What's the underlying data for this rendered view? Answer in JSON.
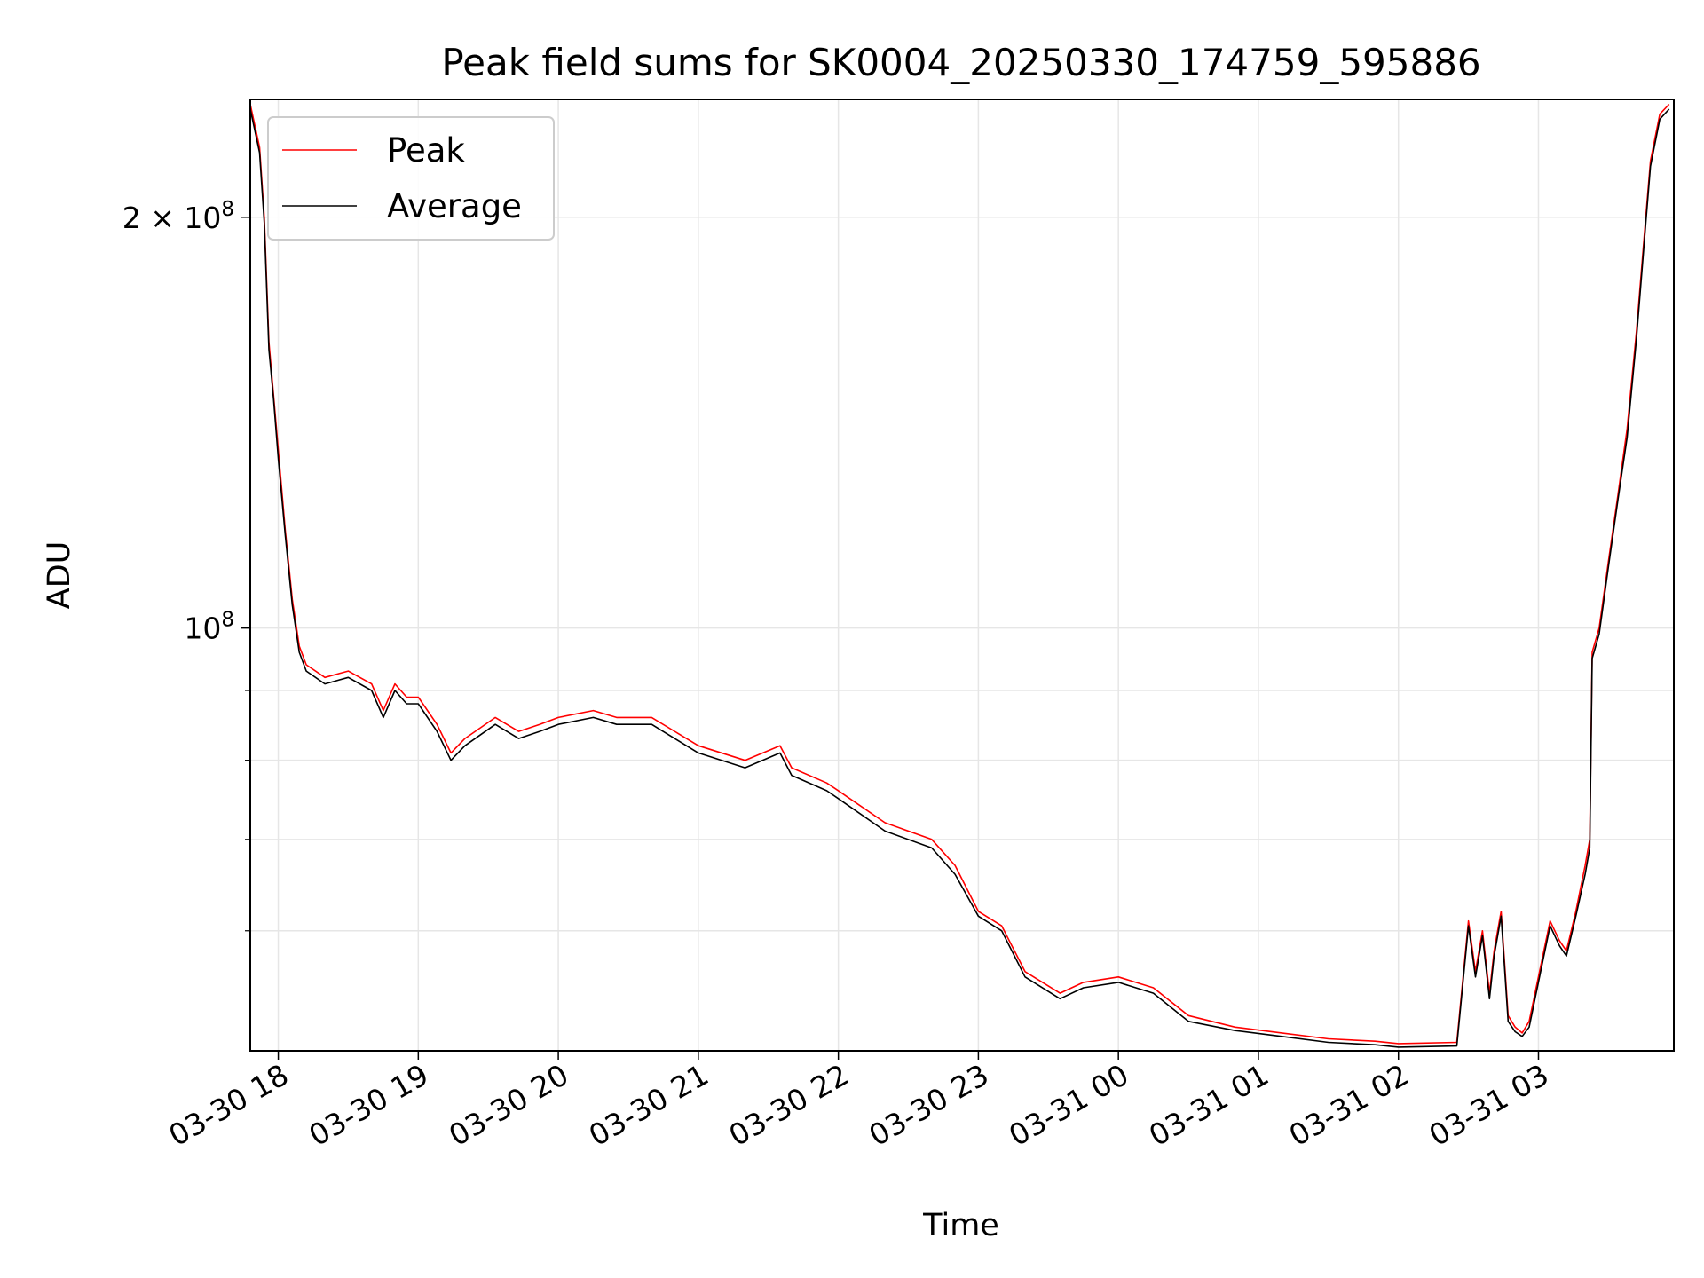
{
  "chart_data": {
    "type": "line",
    "title": "Peak field sums for SK0004_20250330_174759_595886",
    "xlabel": "Time",
    "ylabel": "ADU",
    "y_scale": "log",
    "grid": true,
    "legend_position": "upper-left",
    "xlim": [
      "2025-03-30 17:48",
      "2025-03-31 03:58"
    ],
    "ylim": [
      49000000,
      244000000
    ],
    "x_ticks": [
      {
        "value": "2025-03-30 18:00",
        "label": "03-30 18"
      },
      {
        "value": "2025-03-30 19:00",
        "label": "03-30 19"
      },
      {
        "value": "2025-03-30 20:00",
        "label": "03-30 20"
      },
      {
        "value": "2025-03-30 21:00",
        "label": "03-30 21"
      },
      {
        "value": "2025-03-30 22:00",
        "label": "03-30 22"
      },
      {
        "value": "2025-03-30 23:00",
        "label": "03-30 23"
      },
      {
        "value": "2025-03-31 00:00",
        "label": "03-31 00"
      },
      {
        "value": "2025-03-31 01:00",
        "label": "03-31 01"
      },
      {
        "value": "2025-03-31 02:00",
        "label": "03-31 02"
      },
      {
        "value": "2025-03-31 03:00",
        "label": "03-31 03"
      }
    ],
    "y_ticks": [
      {
        "value": 100000000,
        "base": "10",
        "exp": "8",
        "mantissa": ""
      },
      {
        "value": 200000000,
        "base": "10",
        "exp": "8",
        "mantissa": "2 × "
      }
    ],
    "y_minor_ticks": [
      60000000,
      70000000,
      80000000,
      90000000
    ],
    "series": [
      {
        "name": "Peak",
        "color": "#ff0000",
        "x": [
          "2025-03-30 17:48",
          "2025-03-30 17:52",
          "2025-03-30 17:54",
          "2025-03-30 17:56",
          "2025-03-30 17:58",
          "2025-03-30 18:00",
          "2025-03-30 18:03",
          "2025-03-30 18:06",
          "2025-03-30 18:09",
          "2025-03-30 18:12",
          "2025-03-30 18:20",
          "2025-03-30 18:30",
          "2025-03-30 18:40",
          "2025-03-30 18:45",
          "2025-03-30 18:50",
          "2025-03-30 18:55",
          "2025-03-30 19:00",
          "2025-03-30 19:08",
          "2025-03-30 19:14",
          "2025-03-30 19:20",
          "2025-03-30 19:33",
          "2025-03-30 19:43",
          "2025-03-30 19:52",
          "2025-03-30 20:00",
          "2025-03-30 20:15",
          "2025-03-30 20:25",
          "2025-03-30 20:40",
          "2025-03-30 21:00",
          "2025-03-30 21:20",
          "2025-03-30 21:35",
          "2025-03-30 21:40",
          "2025-03-30 21:55",
          "2025-03-30 22:00",
          "2025-03-30 22:20",
          "2025-03-30 22:40",
          "2025-03-30 22:50",
          "2025-03-30 23:00",
          "2025-03-30 23:10",
          "2025-03-30 23:20",
          "2025-03-30 23:35",
          "2025-03-30 23:45",
          "2025-03-31 00:00",
          "2025-03-31 00:15",
          "2025-03-31 00:30",
          "2025-03-31 00:50",
          "2025-03-31 01:10",
          "2025-03-31 01:30",
          "2025-03-31 01:50",
          "2025-03-31 02:00",
          "2025-03-31 02:25",
          "2025-03-31 02:30",
          "2025-03-31 02:33",
          "2025-03-31 02:36",
          "2025-03-31 02:39",
          "2025-03-31 02:41",
          "2025-03-31 02:44",
          "2025-03-31 02:47",
          "2025-03-31 02:50",
          "2025-03-31 02:53",
          "2025-03-31 02:56",
          "2025-03-31 03:05",
          "2025-03-31 03:09",
          "2025-03-31 03:12",
          "2025-03-31 03:16",
          "2025-03-31 03:20",
          "2025-03-31 03:22",
          "2025-03-31 03:23",
          "2025-03-31 03:26",
          "2025-03-31 03:30",
          "2025-03-31 03:34",
          "2025-03-31 03:38",
          "2025-03-31 03:42",
          "2025-03-31 03:46",
          "2025-03-31 03:48",
          "2025-03-31 03:52",
          "2025-03-31 03:56"
        ],
        "y": [
          242000000,
          225000000,
          200000000,
          162000000,
          148000000,
          135000000,
          118000000,
          105000000,
          97000000,
          94000000,
          92000000,
          93000000,
          91000000,
          87000000,
          91000000,
          89000000,
          89000000,
          85000000,
          81000000,
          83000000,
          86000000,
          84000000,
          85000000,
          86000000,
          87000000,
          86000000,
          86000000,
          82000000,
          80000000,
          82000000,
          79000000,
          77000000,
          76000000,
          72000000,
          70000000,
          67000000,
          62000000,
          60500000,
          56000000,
          54000000,
          55000000,
          55500000,
          54500000,
          52000000,
          51000000,
          50500000,
          50000000,
          49800000,
          49600000,
          49700000,
          61000000,
          56000000,
          60000000,
          54000000,
          58000000,
          62000000,
          52000000,
          51000000,
          50500000,
          51500000,
          61000000,
          59000000,
          58000000,
          62000000,
          67000000,
          70000000,
          96000000,
          100000000,
          112000000,
          125000000,
          140000000,
          165000000,
          200000000,
          220000000,
          238000000,
          242000000
        ]
      },
      {
        "name": "Average",
        "color": "#000000",
        "x": [
          "2025-03-30 17:48",
          "2025-03-30 17:52",
          "2025-03-30 17:54",
          "2025-03-30 17:56",
          "2025-03-30 17:58",
          "2025-03-30 18:00",
          "2025-03-30 18:03",
          "2025-03-30 18:06",
          "2025-03-30 18:09",
          "2025-03-30 18:12",
          "2025-03-30 18:20",
          "2025-03-30 18:30",
          "2025-03-30 18:40",
          "2025-03-30 18:45",
          "2025-03-30 18:50",
          "2025-03-30 18:55",
          "2025-03-30 19:00",
          "2025-03-30 19:08",
          "2025-03-30 19:14",
          "2025-03-30 19:20",
          "2025-03-30 19:33",
          "2025-03-30 19:43",
          "2025-03-30 19:52",
          "2025-03-30 20:00",
          "2025-03-30 20:15",
          "2025-03-30 20:25",
          "2025-03-30 20:40",
          "2025-03-30 21:00",
          "2025-03-30 21:20",
          "2025-03-30 21:35",
          "2025-03-30 21:40",
          "2025-03-30 21:55",
          "2025-03-30 22:00",
          "2025-03-30 22:20",
          "2025-03-30 22:40",
          "2025-03-30 22:50",
          "2025-03-30 23:00",
          "2025-03-30 23:10",
          "2025-03-30 23:20",
          "2025-03-30 23:35",
          "2025-03-30 23:45",
          "2025-03-31 00:00",
          "2025-03-31 00:15",
          "2025-03-31 00:30",
          "2025-03-31 00:50",
          "2025-03-31 01:10",
          "2025-03-31 01:30",
          "2025-03-31 01:50",
          "2025-03-31 02:00",
          "2025-03-31 02:25",
          "2025-03-31 02:30",
          "2025-03-31 02:33",
          "2025-03-31 02:36",
          "2025-03-31 02:39",
          "2025-03-31 02:41",
          "2025-03-31 02:44",
          "2025-03-31 02:47",
          "2025-03-31 02:50",
          "2025-03-31 02:53",
          "2025-03-31 02:56",
          "2025-03-31 03:05",
          "2025-03-31 03:09",
          "2025-03-31 03:12",
          "2025-03-31 03:16",
          "2025-03-31 03:20",
          "2025-03-31 03:22",
          "2025-03-31 03:23",
          "2025-03-31 03:26",
          "2025-03-31 03:30",
          "2025-03-31 03:34",
          "2025-03-31 03:38",
          "2025-03-31 03:42",
          "2025-03-31 03:46",
          "2025-03-31 03:48",
          "2025-03-31 03:52",
          "2025-03-31 03:56"
        ],
        "y": [
          240000000,
          223000000,
          198000000,
          160000000,
          147000000,
          133000000,
          117000000,
          104000000,
          96000000,
          93000000,
          91000000,
          92000000,
          90000000,
          86000000,
          90000000,
          88000000,
          88000000,
          84000000,
          80000000,
          82000000,
          85000000,
          83000000,
          84000000,
          85000000,
          86000000,
          85000000,
          85000000,
          81000000,
          79000000,
          81000000,
          78000000,
          76000000,
          75000000,
          71000000,
          69000000,
          66000000,
          61500000,
          60000000,
          55500000,
          53500000,
          54500000,
          55000000,
          54000000,
          51500000,
          50700000,
          50200000,
          49700000,
          49500000,
          49300000,
          49400000,
          60500000,
          55500000,
          59500000,
          53500000,
          57500000,
          61500000,
          51500000,
          50600000,
          50200000,
          51000000,
          60500000,
          58500000,
          57500000,
          61500000,
          66000000,
          69000000,
          95000000,
          99000000,
          111000000,
          124000000,
          138000000,
          163000000,
          198000000,
          218000000,
          236000000,
          240000000
        ]
      }
    ]
  }
}
